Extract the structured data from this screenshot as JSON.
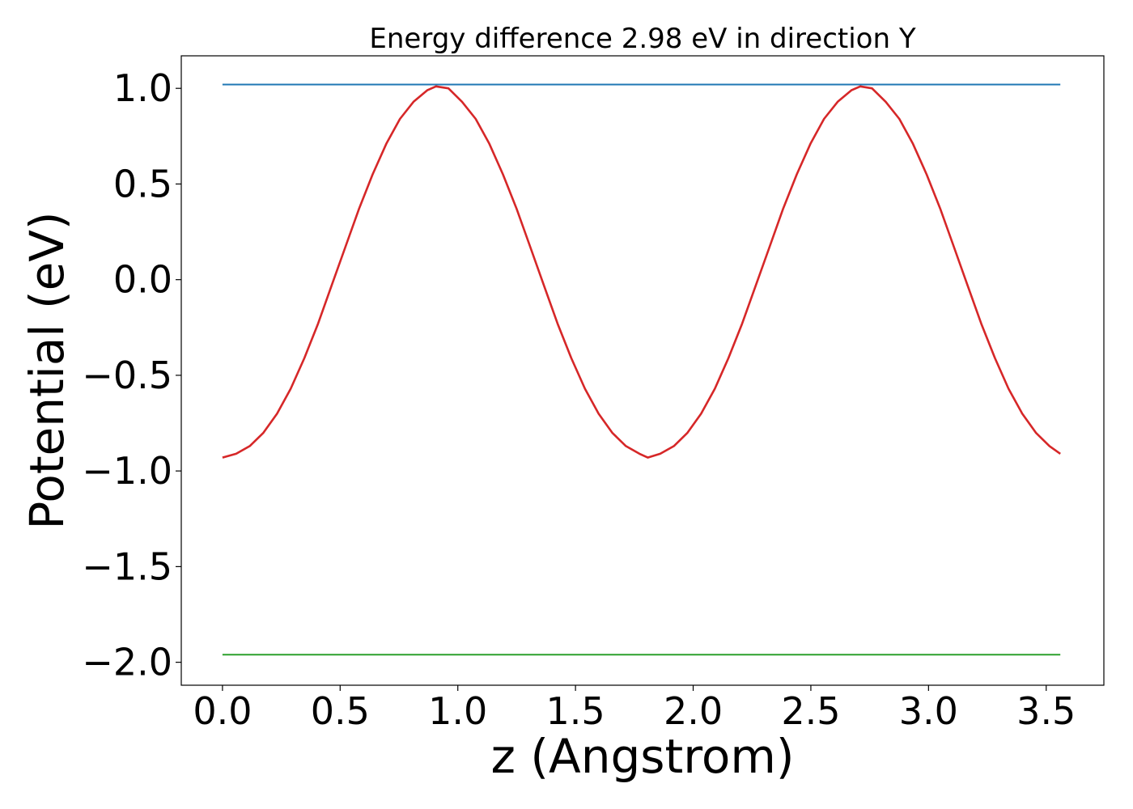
{
  "chart_data": {
    "type": "line",
    "title": "Energy difference 2.98 eV in direction Y",
    "xlabel": "z (Angstrom)",
    "ylabel": "Potential (eV)",
    "xlim": [
      -0.175,
      3.745
    ],
    "ylim": [
      -2.12,
      1.17
    ],
    "xticks": [
      0.0,
      0.5,
      1.0,
      1.5,
      2.0,
      2.5,
      3.0,
      3.5
    ],
    "xtick_labels": [
      "0.0",
      "0.5",
      "1.0",
      "1.5",
      "2.0",
      "2.5",
      "3.0",
      "3.5"
    ],
    "yticks": [
      1.0,
      0.5,
      0.0,
      -0.5,
      -1.0,
      -1.5,
      -2.0
    ],
    "ytick_labels": [
      "1.0",
      "0.5",
      "0.0",
      "−0.5",
      "−1.0",
      "−1.5",
      "−2.0"
    ],
    "grid": false,
    "series": [
      {
        "color": "#1f77b4",
        "x": [
          0.0,
          3.56
        ],
        "y": [
          1.02,
          1.02
        ]
      },
      {
        "color": "#2ca02c",
        "x": [
          0.0,
          3.56
        ],
        "y": [
          -1.96,
          -1.96
        ]
      },
      {
        "color": "#d62728",
        "x": [
          0.0,
          0.058,
          0.116,
          0.174,
          0.232,
          0.29,
          0.348,
          0.406,
          0.464,
          0.522,
          0.58,
          0.638,
          0.696,
          0.754,
          0.812,
          0.87,
          0.907,
          0.96,
          1.018,
          1.076,
          1.134,
          1.192,
          1.25,
          1.308,
          1.366,
          1.424,
          1.482,
          1.54,
          1.598,
          1.656,
          1.714,
          1.772,
          1.807,
          1.86,
          1.918,
          1.976,
          2.034,
          2.092,
          2.15,
          2.208,
          2.266,
          2.324,
          2.382,
          2.44,
          2.498,
          2.556,
          2.614,
          2.672,
          2.71,
          2.76,
          2.818,
          2.876,
          2.934,
          2.992,
          3.05,
          3.108,
          3.166,
          3.224,
          3.282,
          3.34,
          3.398,
          3.456,
          3.514,
          3.56
        ],
        "y": [
          -0.93,
          -0.91,
          -0.87,
          -0.8,
          -0.7,
          -0.57,
          -0.41,
          -0.23,
          -0.03,
          0.17,
          0.37,
          0.55,
          0.71,
          0.84,
          0.93,
          0.99,
          1.01,
          1.0,
          0.93,
          0.84,
          0.71,
          0.55,
          0.37,
          0.17,
          -0.03,
          -0.23,
          -0.41,
          -0.57,
          -0.7,
          -0.8,
          -0.87,
          -0.91,
          -0.93,
          -0.91,
          -0.87,
          -0.8,
          -0.7,
          -0.57,
          -0.41,
          -0.23,
          -0.03,
          0.17,
          0.37,
          0.55,
          0.71,
          0.84,
          0.93,
          0.99,
          1.01,
          1.0,
          0.93,
          0.84,
          0.71,
          0.55,
          0.37,
          0.17,
          -0.03,
          -0.23,
          -0.41,
          -0.57,
          -0.7,
          -0.8,
          -0.87,
          -0.91
        ]
      }
    ]
  }
}
